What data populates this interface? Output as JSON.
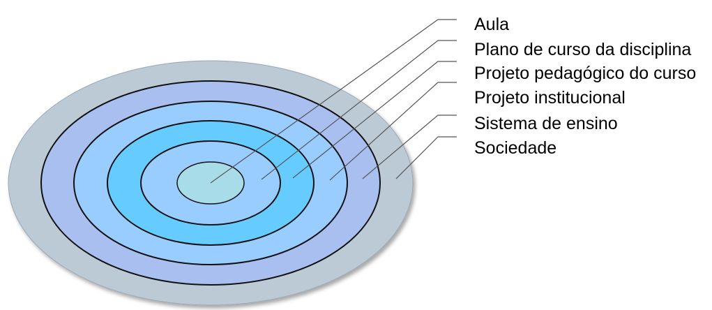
{
  "layers": [
    {
      "id": "aula",
      "label": "Aula",
      "color": "#a8dce8"
    },
    {
      "id": "plano-de-curso",
      "label": "Plano de curso da disciplina",
      "color": "#99ccff"
    },
    {
      "id": "projeto-pedagogico",
      "label": "Projeto pedagógico do curso",
      "color": "#66ccff"
    },
    {
      "id": "projeto-institucional",
      "label": "Projeto institucional",
      "color": "#99ccff"
    },
    {
      "id": "sistema-de-ensino",
      "label": "Sistema de ensino",
      "color": "#a8bfef"
    },
    {
      "id": "sociedade",
      "label": "Sociedade",
      "color": "#bccad6"
    }
  ]
}
